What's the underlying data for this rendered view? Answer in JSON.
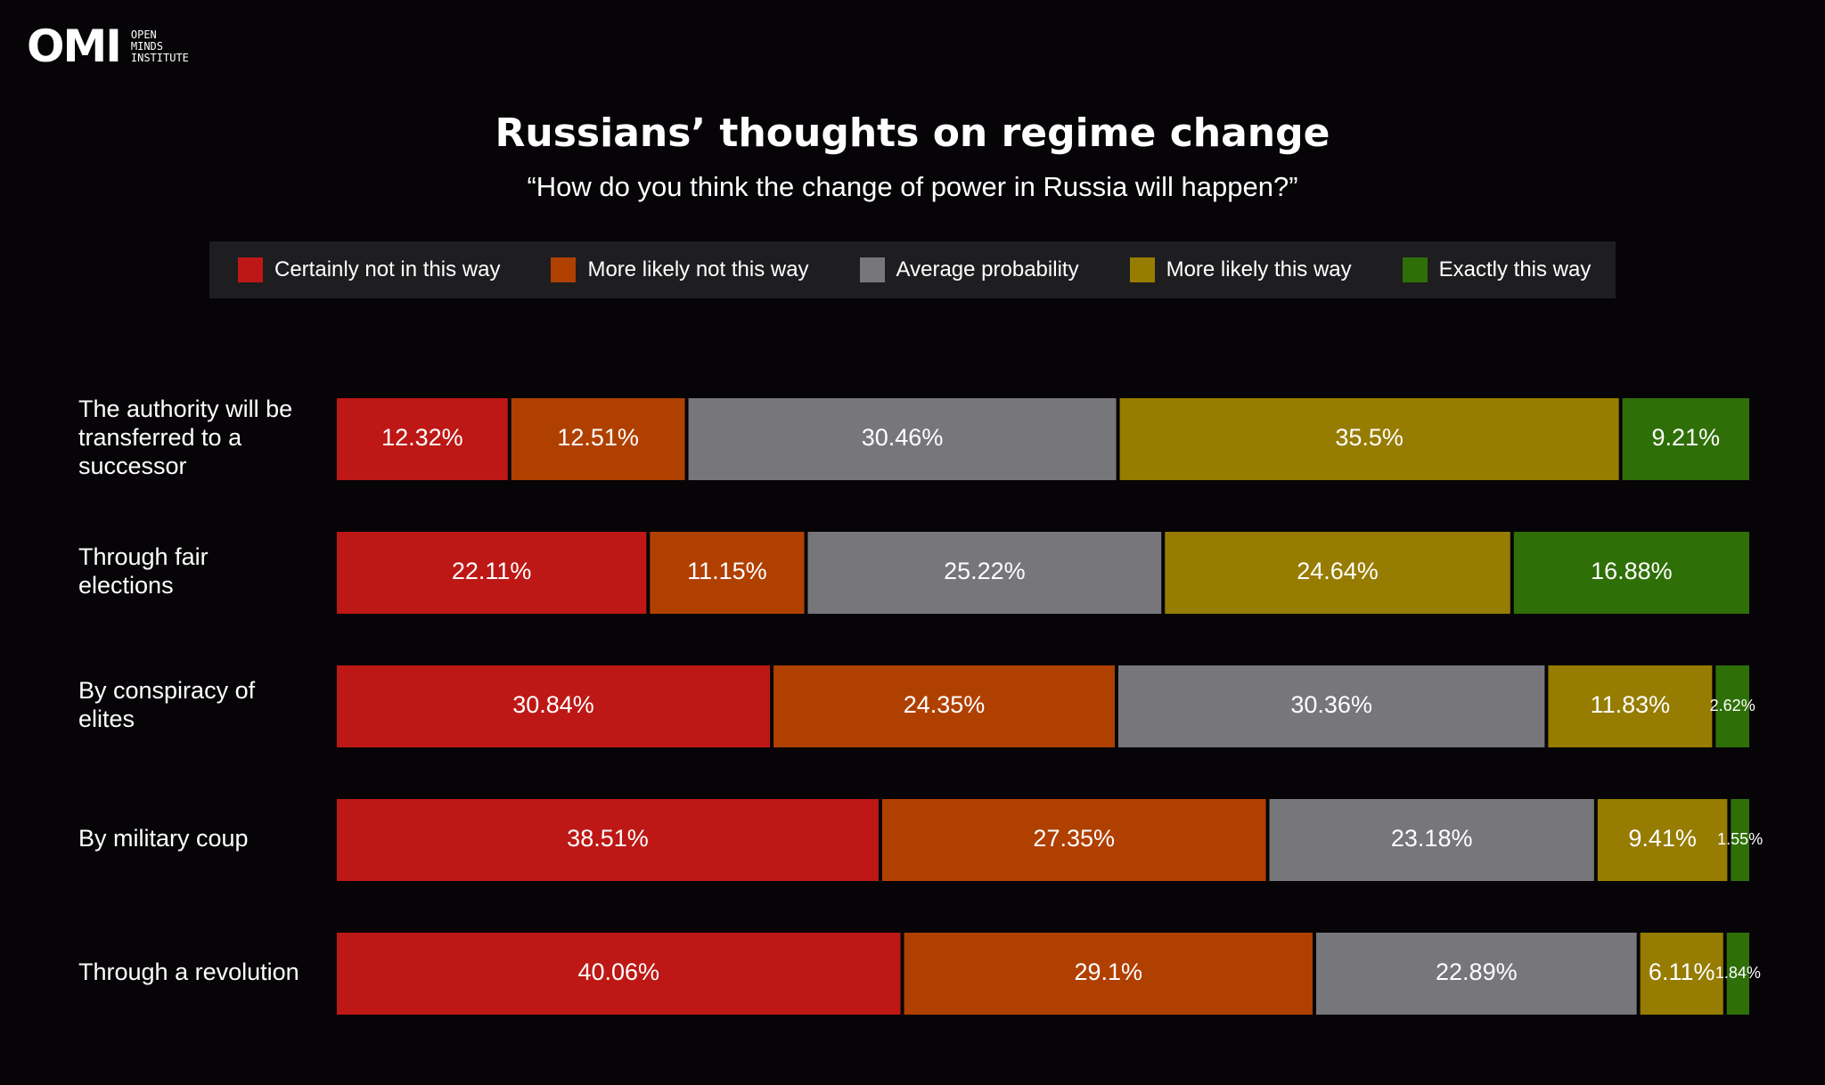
{
  "logo": {
    "mark": "OMI",
    "lines": [
      "OPEN",
      "MINDS",
      "INSTITUTE"
    ]
  },
  "header": {
    "title": "Russians’ thoughts on regime change",
    "subtitle": "“How do you think the change of power in Russia will happen?”"
  },
  "chart_data": {
    "type": "bar",
    "orientation": "horizontal",
    "stacked": true,
    "normalized_to": 100,
    "legend_position": "top",
    "grid": false,
    "categories": [
      [
        "The authority will be",
        "transferred to a",
        "successor"
      ],
      [
        "Through fair",
        "elections"
      ],
      [
        "By conspiracy of",
        "elites"
      ],
      [
        "By military coup"
      ],
      [
        "Through a revolution"
      ]
    ],
    "series": [
      {
        "name": "Certainly not in this way",
        "color": "#bd1815",
        "values": [
          12.32,
          22.11,
          30.84,
          38.51,
          40.06
        ],
        "labels": [
          "12.32%",
          "22.11%",
          "30.84%",
          "38.51%",
          "40.06%"
        ]
      },
      {
        "name": "More likely not this way",
        "color": "#b04000",
        "values": [
          12.51,
          11.15,
          24.35,
          27.35,
          29.1
        ],
        "labels": [
          "12.51%",
          "11.15%",
          "24.35%",
          "27.35%",
          "29.1%"
        ]
      },
      {
        "name": "Average probability",
        "color": "#77767a",
        "values": [
          30.46,
          25.22,
          30.36,
          23.18,
          22.89
        ],
        "labels": [
          "30.46%",
          "25.22%",
          "30.36%",
          "23.18%",
          "22.89%"
        ]
      },
      {
        "name": "More likely this way",
        "color": "#967c00",
        "values": [
          35.5,
          24.64,
          11.83,
          9.41,
          6.11
        ],
        "labels": [
          "35.5%",
          "24.64%",
          "11.83%",
          "9.41%",
          "6.11%"
        ]
      },
      {
        "name": "Exactly this way",
        "color": "#2f6f08",
        "values": [
          9.21,
          16.88,
          2.62,
          1.55,
          1.84
        ],
        "labels": [
          "9.21%",
          "16.88%",
          "2.62%",
          "1.55%",
          "1.84%"
        ]
      }
    ]
  }
}
